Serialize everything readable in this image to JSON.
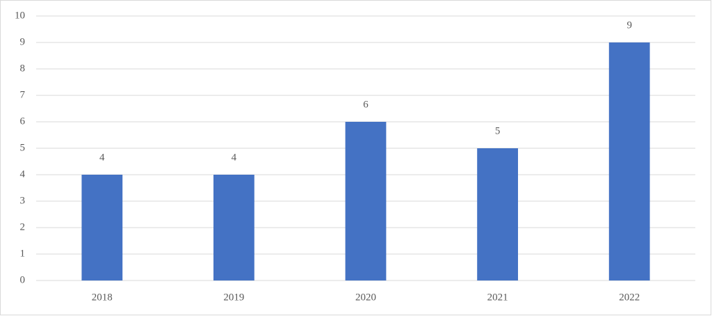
{
  "chart_data": {
    "type": "bar",
    "categories": [
      "2018",
      "2019",
      "2020",
      "2021",
      "2022"
    ],
    "values": [
      4,
      4,
      6,
      5,
      9
    ],
    "color": "#4472c4",
    "ylim": [
      0,
      10
    ],
    "yticks": [
      0,
      1,
      2,
      3,
      4,
      5,
      6,
      7,
      8,
      9,
      10
    ],
    "grid": true,
    "data_labels": true
  }
}
